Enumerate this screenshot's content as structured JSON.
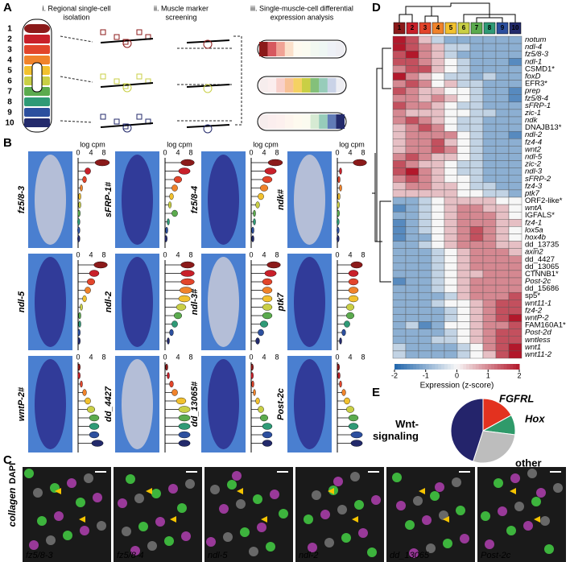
{
  "panels": {
    "a": "A",
    "b": "B",
    "c": "C",
    "d": "D",
    "e": "E"
  },
  "panel_a": {
    "steps": [
      "i. Regional single-cell",
      "isolation",
      "ii. Muscle marker",
      "screening",
      "iii. Single-muscle-cell differential",
      "expression analysis"
    ],
    "regions": [
      1,
      2,
      3,
      4,
      5,
      6,
      7,
      8,
      9,
      10
    ],
    "region_colors": [
      "#8b1a1a",
      "#c8202a",
      "#e2452b",
      "#f0832b",
      "#f2c12e",
      "#c9cf45",
      "#5bab4e",
      "#2f9a76",
      "#2c4f9e",
      "#232a6b"
    ]
  },
  "panel_b": {
    "axis_label": "log cpm",
    "xticks": [
      0,
      4,
      8
    ],
    "xlim": [
      0,
      9
    ],
    "genes": [
      {
        "name": "fz5/8-3",
        "levels": [
          7.5,
          3,
          2,
          1,
          0.5,
          0.5,
          0.3,
          0.2,
          0.2,
          0.2
        ]
      },
      {
        "name": "sFRP-1#",
        "levels": [
          7,
          6,
          4,
          3,
          2,
          1.5,
          3,
          1,
          0.5,
          0.3
        ]
      },
      {
        "name": "fz5/8-4",
        "levels": [
          7.5,
          6,
          5,
          4,
          3,
          2,
          1,
          1,
          0.5,
          0.5
        ]
      },
      {
        "name": "ndk#",
        "levels": [
          7,
          1,
          0.5,
          1,
          0.5,
          0.3,
          0.3,
          0.2,
          0.2,
          0.2
        ]
      },
      {
        "name": "ndl-5",
        "levels": [
          7,
          5,
          4,
          3,
          2,
          1,
          0.5,
          0.5,
          0.3,
          0.3
        ]
      },
      {
        "name": "ndl-2",
        "levels": [
          7,
          7,
          7,
          6.5,
          6,
          5,
          4,
          3,
          2,
          1
        ]
      },
      {
        "name": "ndl-3#",
        "levels": [
          7,
          6,
          5,
          5,
          5,
          5,
          5,
          4,
          3,
          2
        ]
      },
      {
        "name": "ptk7",
        "levels": [
          6,
          5,
          5,
          5,
          5,
          4,
          4,
          3,
          2,
          1
        ]
      },
      {
        "name": "wntP-2#",
        "levels": [
          0.3,
          0.3,
          1,
          2,
          3,
          4,
          5,
          5,
          5,
          6
        ]
      },
      {
        "name": "dd_4427",
        "levels": [
          0.5,
          1,
          2,
          3,
          5,
          6,
          6,
          6,
          6,
          6
        ]
      },
      {
        "name": "dd_13065#",
        "levels": [
          0.3,
          0.3,
          0.5,
          1,
          2,
          3,
          4,
          5,
          5,
          5
        ]
      },
      {
        "name": "Post-2c",
        "levels": [
          0.3,
          0.5,
          1,
          2,
          3,
          4,
          5,
          5,
          6,
          6
        ]
      }
    ]
  },
  "panel_c": {
    "stain_1": "collagen",
    "stain_2": "DAPI",
    "images": [
      "fz5/8-3",
      "fz5/8-4",
      "ndl-5",
      "ndl-2",
      "dd_13065",
      "Post-2c"
    ]
  },
  "chart_data": [
    {
      "type": "heatmap",
      "columns": [
        1,
        2,
        3,
        4,
        5,
        6,
        7,
        8,
        9,
        10
      ],
      "rows": [
        "notum",
        "ndl-4",
        "fz5/8-3",
        "ndl-1",
        "CSMD1*",
        "foxD",
        "EFR3*",
        "prep",
        "fz5/8-4",
        "sFRP-1",
        "zic-1",
        "ndk",
        "DNAJB13*",
        "ndl-2",
        "fz4-4",
        "wnt2",
        "ndl-5",
        "zic-2",
        "ndl-3",
        "sFRP-2",
        "fz4-3",
        "ptk7",
        "ORF2-like*",
        "wntA",
        "IGFALS*",
        "fz4-1",
        "lox5a",
        "hox4b",
        "dd_13735",
        "axin2",
        "dd_4427",
        "dd_13065",
        "CTNNB1*",
        "Post-2c",
        "dd_15686",
        "sp5*",
        "wnt11-1",
        "fz4-2",
        "wntP-2",
        "FAM160A1*",
        "Post-2d",
        "wntless",
        "wnt1",
        "wnt11-2"
      ],
      "values": [
        [
          2,
          1.5,
          0.5,
          -0.5,
          -1,
          -1,
          -1,
          -1,
          -1,
          -1
        ],
        [
          2,
          1.5,
          1,
          0.5,
          -0.5,
          -0.5,
          -1,
          -1,
          -1,
          -1
        ],
        [
          1.5,
          2,
          1,
          0.5,
          -0.5,
          -1,
          -1,
          -1,
          -1,
          -1
        ],
        [
          1.5,
          1.5,
          1,
          0.5,
          0,
          -0.5,
          -1,
          -1,
          -1,
          -1.5
        ],
        [
          1,
          1.5,
          1.5,
          0.5,
          0,
          -0.5,
          -1,
          -1,
          -1,
          -1
        ],
        [
          2,
          1,
          0.5,
          0,
          -0.5,
          -0.5,
          -1,
          -0.5,
          -1,
          -1
        ],
        [
          1,
          1.5,
          1,
          0,
          0.5,
          -0.5,
          -0.5,
          -1,
          -1,
          -1
        ],
        [
          1.5,
          1,
          0.5,
          0.5,
          0,
          0,
          -0.5,
          -1,
          -1,
          -1.5
        ],
        [
          1,
          1,
          0.5,
          1,
          0.5,
          0,
          -0.5,
          -1,
          -1,
          -1.5
        ],
        [
          1.5,
          1,
          1,
          0.5,
          0,
          -0.5,
          -0.5,
          -1,
          -1,
          -1
        ],
        [
          1,
          0.5,
          0.5,
          0.5,
          0,
          0,
          -0.5,
          -0.5,
          -1,
          -1
        ],
        [
          1,
          1.5,
          1,
          0.5,
          0,
          -0.5,
          -0.5,
          -1,
          -1,
          -1
        ],
        [
          0.5,
          1,
          1.5,
          1,
          0,
          -0.5,
          -0.5,
          -1,
          -1,
          -1
        ],
        [
          0.5,
          1,
          1,
          1,
          1,
          0,
          -0.5,
          -1,
          -1,
          -1.5
        ],
        [
          0.5,
          1,
          1,
          1.5,
          0.5,
          0,
          -0.5,
          -1,
          -1,
          -1
        ],
        [
          0.5,
          1,
          1,
          1.5,
          1,
          0,
          -0.5,
          -1,
          -1,
          -1
        ],
        [
          1,
          1.5,
          1,
          0.5,
          0.5,
          0,
          -0.5,
          -1,
          -1,
          -1
        ],
        [
          1.5,
          1,
          0.5,
          0.5,
          0,
          -0.5,
          -0.5,
          -1,
          -1,
          -1
        ],
        [
          1.5,
          2,
          1,
          0.5,
          0,
          -0.5,
          -0.5,
          -1,
          -1,
          -1
        ],
        [
          1,
          1.5,
          1,
          0.5,
          0,
          0,
          -0.5,
          -1,
          -1,
          -1
        ],
        [
          0.5,
          1,
          1,
          0.5,
          0.5,
          0,
          -0.5,
          -0.5,
          -1,
          -1
        ],
        [
          0.5,
          0.5,
          0.5,
          0.5,
          0.5,
          0,
          0,
          -0.5,
          -0.5,
          -1
        ],
        [
          -1,
          -1,
          -0.5,
          0,
          0.5,
          0.5,
          0.5,
          0.5,
          0,
          0
        ],
        [
          -1.5,
          -1,
          -0.5,
          0,
          0.5,
          1,
          1,
          0.5,
          0.5,
          0
        ],
        [
          -1,
          -1,
          -0.5,
          0,
          0.5,
          1,
          1,
          1,
          0.5,
          0
        ],
        [
          -1.5,
          -1,
          -0.5,
          0,
          0.5,
          1,
          1,
          1,
          0.5,
          0.5
        ],
        [
          -1.5,
          -1,
          -0.5,
          0,
          0.5,
          1,
          1.5,
          1,
          0.5,
          0
        ],
        [
          -1.5,
          -1,
          -1,
          0,
          0.5,
          1,
          1.5,
          1,
          0.5,
          0
        ],
        [
          -1,
          -1,
          -0.5,
          0,
          0.5,
          1,
          1,
          1,
          0.5,
          0.5
        ],
        [
          -1,
          -1,
          -1,
          -0.5,
          0,
          0.5,
          1,
          1,
          1,
          0.5
        ],
        [
          -1,
          -1,
          -1,
          -0.5,
          0,
          0.5,
          1,
          1,
          1,
          1
        ],
        [
          -1,
          -1,
          -1,
          -0.5,
          0,
          0.5,
          1,
          1,
          1,
          1
        ],
        [
          -1,
          -1,
          -1,
          -0.5,
          0,
          0.5,
          0.5,
          1,
          1,
          1
        ],
        [
          -1.5,
          -1,
          -1,
          -0.5,
          0,
          0.5,
          1,
          1,
          1,
          1
        ],
        [
          -1,
          -1,
          -1,
          -0.5,
          0,
          0.5,
          1,
          1,
          1,
          1
        ],
        [
          -1,
          -1,
          -1,
          -1,
          -0.5,
          0.5,
          1,
          1,
          1,
          1.5
        ],
        [
          -1,
          -1,
          -1,
          -0.5,
          0,
          0,
          0.5,
          1,
          1.5,
          1.5
        ],
        [
          -1,
          -1,
          -1,
          -1,
          -0.5,
          0,
          0.5,
          1,
          1.5,
          1.5
        ],
        [
          -1,
          -1,
          -1,
          -1,
          -0.5,
          0,
          0.5,
          1,
          1.5,
          2
        ],
        [
          -1,
          -0.5,
          -1.5,
          -1,
          0,
          0,
          0.5,
          1,
          1,
          1.5
        ],
        [
          -1,
          -1,
          -1,
          -1,
          -0.5,
          0,
          0.5,
          1,
          1.5,
          1.5
        ],
        [
          -1,
          -1,
          -1,
          -0.5,
          -0.5,
          0,
          0.5,
          1,
          1.5,
          1.5
        ],
        [
          -0.5,
          -1,
          -1,
          -1,
          -1,
          -0.5,
          0,
          1,
          1.5,
          2
        ],
        [
          -0.5,
          -1,
          -1,
          -1,
          -1,
          -0.5,
          0,
          0.5,
          1.5,
          2
        ]
      ],
      "colorbar_label": "Expression (z-score)",
      "clim": [
        -2,
        2
      ],
      "cticks": [
        -2,
        -1,
        0,
        1,
        2
      ],
      "colors": [
        "#2166ac",
        "#f7f7f7",
        "#b2182b"
      ]
    },
    {
      "type": "pie",
      "categories": [
        "FGFRL",
        "Hox",
        "other",
        "Wnt-signaling"
      ],
      "values": [
        17,
        10,
        28,
        45
      ],
      "colors": [
        "#e3321f",
        "#2f9a6a",
        "#bdbdbd",
        "#24246b"
      ]
    }
  ]
}
